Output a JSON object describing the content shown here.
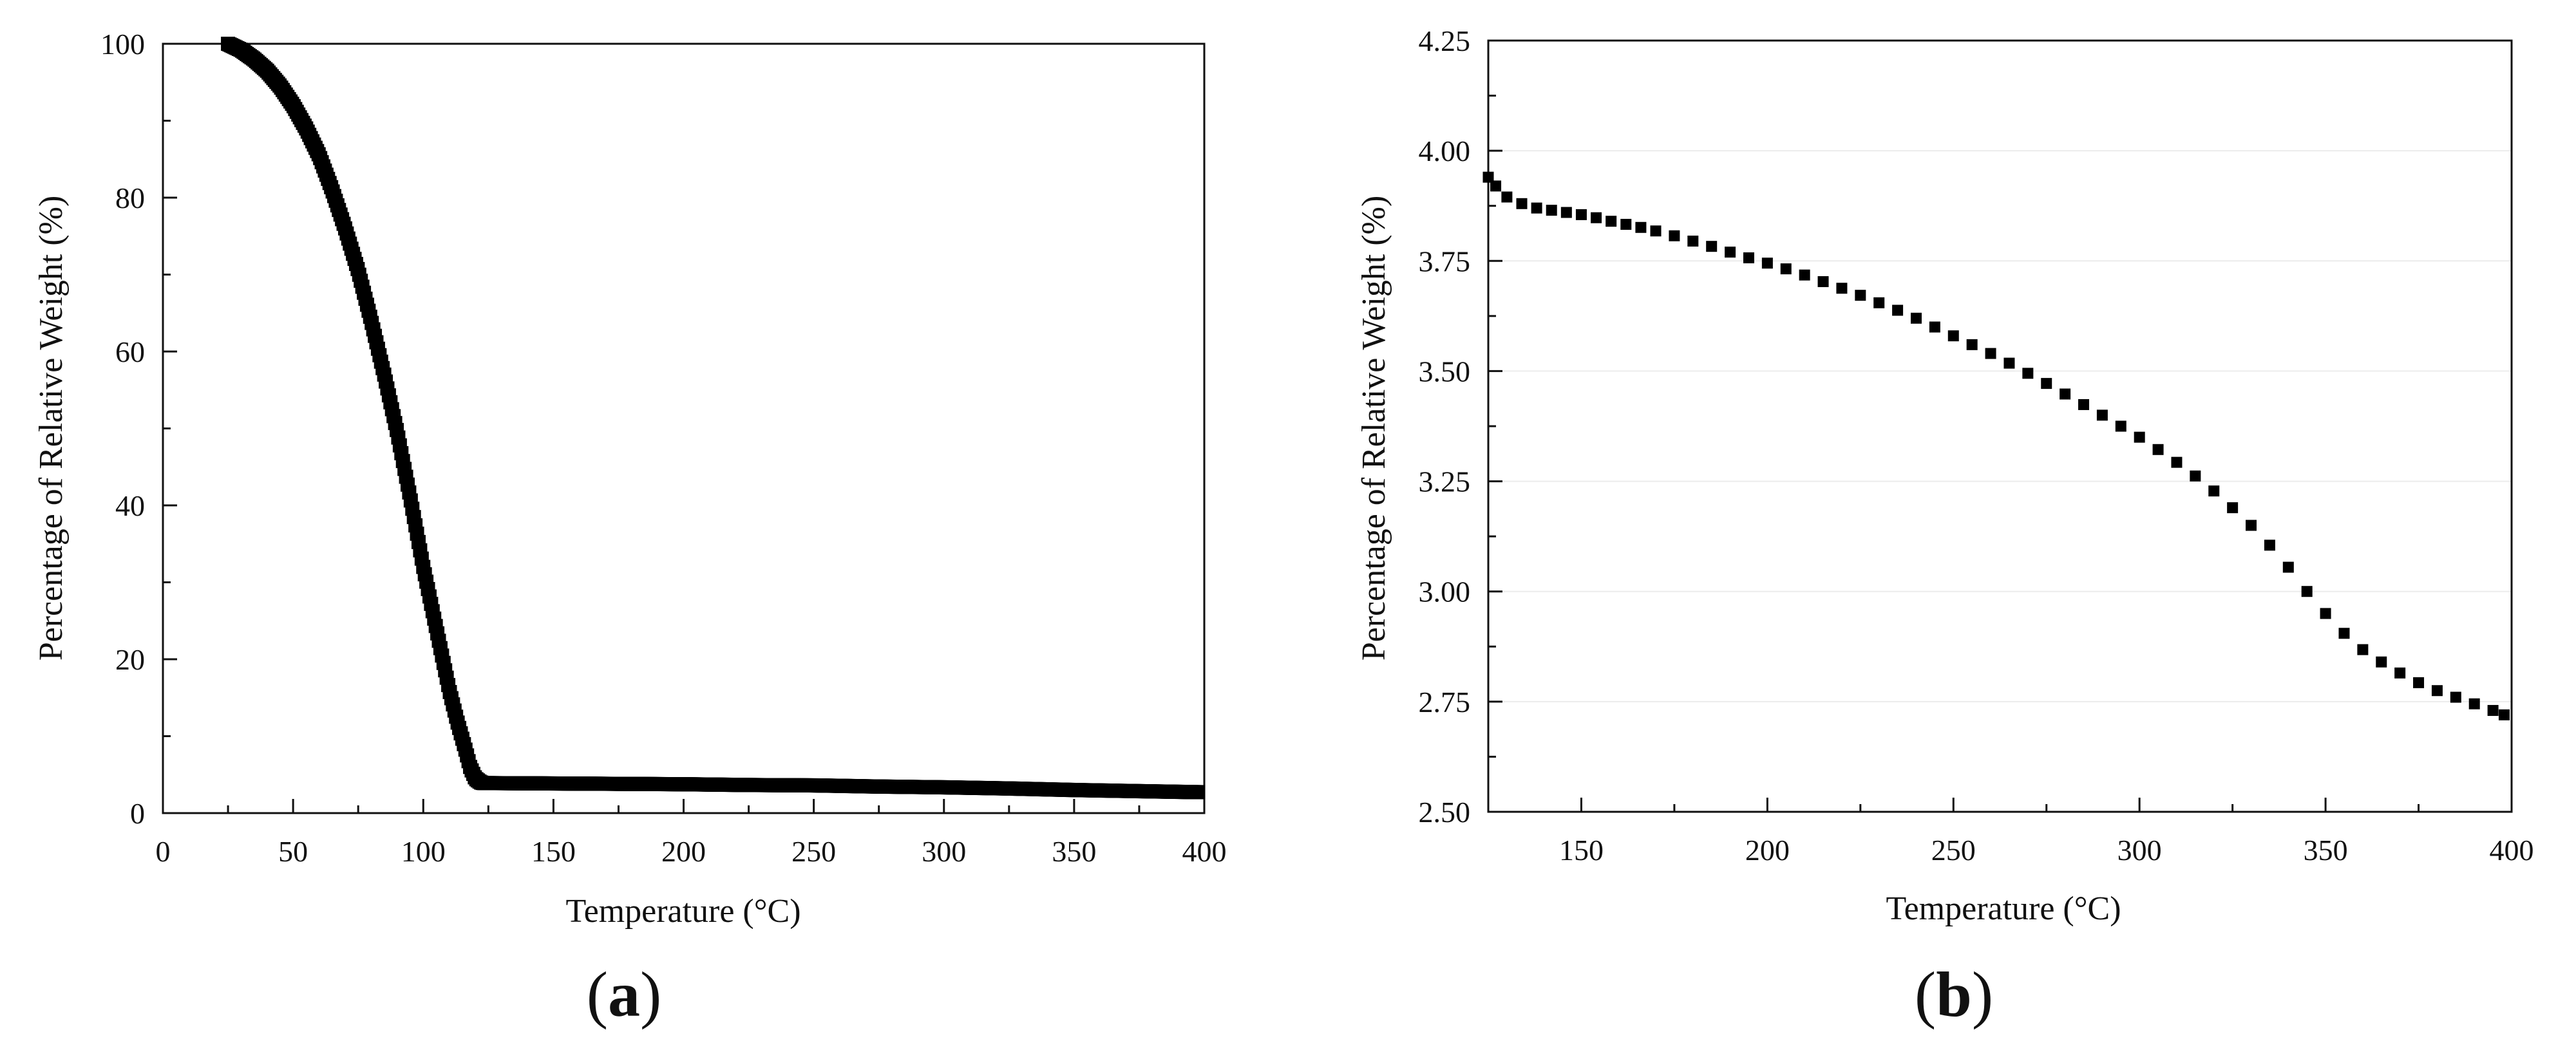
{
  "chart_data": [
    {
      "panel": "a",
      "type": "scatter",
      "title": "",
      "xlabel": "Temperature (°C)",
      "ylabel": "Percentage of Relative Weight (%)",
      "xlim": [
        0,
        400
      ],
      "ylim": [
        0,
        100
      ],
      "xticks": [
        0,
        50,
        100,
        150,
        200,
        250,
        300,
        350,
        400
      ],
      "yticks": [
        0,
        20,
        40,
        60,
        80,
        100
      ],
      "xtick_labels": [
        "0",
        "50",
        "100",
        "150",
        "200",
        "250",
        "300",
        "350",
        "400"
      ],
      "ytick_labels": [
        "0",
        "20",
        "40",
        "60",
        "80",
        "100"
      ],
      "grid": false,
      "marker_color": "#000000",
      "series": [
        {
          "x": [
            25,
            30,
            35,
            40,
            45,
            50,
            55,
            60,
            65,
            70,
            75,
            80,
            85,
            90,
            95,
            100,
            105,
            110,
            113,
            116,
            118,
            120,
            122,
            123,
            125,
            150,
            175,
            200,
            225,
            250,
            275,
            300,
            325,
            350,
            375,
            398
          ],
          "y": [
            100,
            99.2,
            98,
            96.5,
            94.5,
            92,
            89,
            85.5,
            81,
            76,
            70.5,
            64,
            57,
            49.5,
            41,
            32,
            24,
            16,
            12,
            8.5,
            6,
            4.5,
            4,
            3.9,
            3.9,
            3.85,
            3.8,
            3.75,
            3.65,
            3.6,
            3.45,
            3.35,
            3.2,
            3.0,
            2.85,
            2.72
          ]
        }
      ]
    },
    {
      "panel": "b",
      "type": "scatter",
      "title": "",
      "xlabel": "Temperature (°C)",
      "ylabel": "Percentage of Relative Weight (%)",
      "xlim": [
        125,
        400
      ],
      "ylim": [
        2.5,
        4.25
      ],
      "xticks": [
        150,
        200,
        250,
        300,
        350,
        400
      ],
      "yticks": [
        2.5,
        2.75,
        3.0,
        3.25,
        3.5,
        3.75,
        4.0,
        4.25
      ],
      "xtick_labels": [
        "150",
        "200",
        "250",
        "300",
        "350",
        "400"
      ],
      "ytick_labels": [
        "2.50",
        "2.75",
        "3.00",
        "3.25",
        "3.50",
        "3.75",
        "4.00",
        "4.25"
      ],
      "grid": true,
      "marker_color": "#000000",
      "series": [
        {
          "x": [
            125,
            127,
            130,
            134,
            138,
            142,
            146,
            150,
            154,
            158,
            162,
            166,
            170,
            175,
            180,
            185,
            190,
            195,
            200,
            205,
            210,
            215,
            220,
            225,
            230,
            235,
            240,
            245,
            250,
            255,
            260,
            265,
            270,
            275,
            280,
            285,
            290,
            295,
            300,
            305,
            310,
            315,
            320,
            325,
            330,
            335,
            340,
            345,
            350,
            355,
            360,
            365,
            370,
            375,
            380,
            385,
            390,
            395,
            398
          ],
          "y": [
            3.94,
            3.92,
            3.895,
            3.88,
            3.87,
            3.865,
            3.86,
            3.855,
            3.848,
            3.84,
            3.833,
            3.826,
            3.818,
            3.807,
            3.795,
            3.783,
            3.77,
            3.757,
            3.745,
            3.732,
            3.718,
            3.703,
            3.688,
            3.672,
            3.655,
            3.638,
            3.62,
            3.6,
            3.58,
            3.56,
            3.54,
            3.518,
            3.495,
            3.472,
            3.448,
            3.424,
            3.4,
            3.375,
            3.35,
            3.322,
            3.293,
            3.262,
            3.228,
            3.19,
            3.15,
            3.105,
            3.055,
            3.0,
            2.95,
            2.905,
            2.868,
            2.84,
            2.815,
            2.793,
            2.775,
            2.76,
            2.745,
            2.73,
            2.72
          ]
        }
      ]
    }
  ],
  "panels": {
    "a": {
      "label_open": "(",
      "label_letter": "a",
      "label_close": ")"
    },
    "b": {
      "label_open": "(",
      "label_letter": "b",
      "label_close": ")"
    }
  }
}
